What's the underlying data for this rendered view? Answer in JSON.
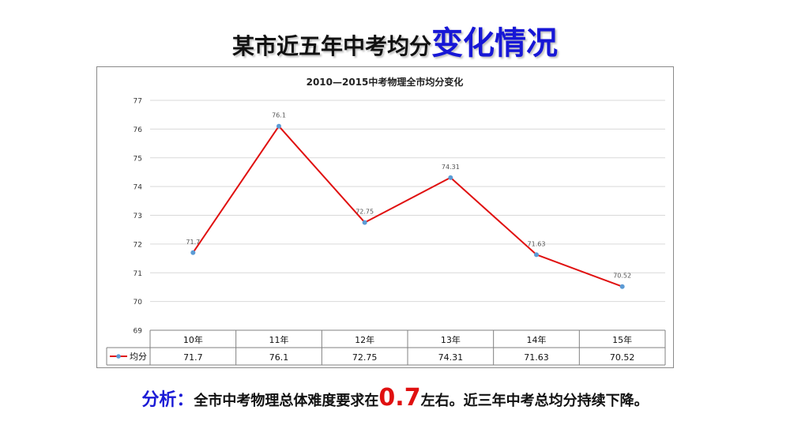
{
  "header": {
    "title_main": "某市近五年中考均分",
    "title_highlight": "变化情况"
  },
  "colors": {
    "title_highlight": "#1717d6",
    "series_line": "#e01010",
    "series_marker": "#5b9bd5",
    "analysis_label": "#1a1ad6",
    "analysis_highlight": "#e01010"
  },
  "chart_data": {
    "type": "line",
    "title": "2010—2015中考物理全市均分变化",
    "categories": [
      "10年",
      "11年",
      "12年",
      "13年",
      "14年",
      "15年"
    ],
    "series": [
      {
        "name": "均分",
        "values": [
          71.7,
          76.1,
          72.75,
          74.31,
          71.63,
          70.52
        ]
      }
    ],
    "data_labels": [
      "71.7",
      "76.1",
      "72.75",
      "74.31",
      "71.63",
      "70.52"
    ],
    "table_values": [
      "71.7",
      "76.1",
      "72.75",
      "74.31",
      "71.63",
      "70.52"
    ],
    "yticks": [
      "69",
      "70",
      "71",
      "72",
      "73",
      "74",
      "75",
      "76",
      "77"
    ],
    "ylim": [
      69,
      77
    ],
    "grid": true,
    "legend": "data-table"
  },
  "analysis": {
    "label": "分析：",
    "text_before": "全市中考物理总体难度要求在",
    "highlight": "0.7",
    "text_after": "左右。近三年中考总均分持续下降。"
  }
}
